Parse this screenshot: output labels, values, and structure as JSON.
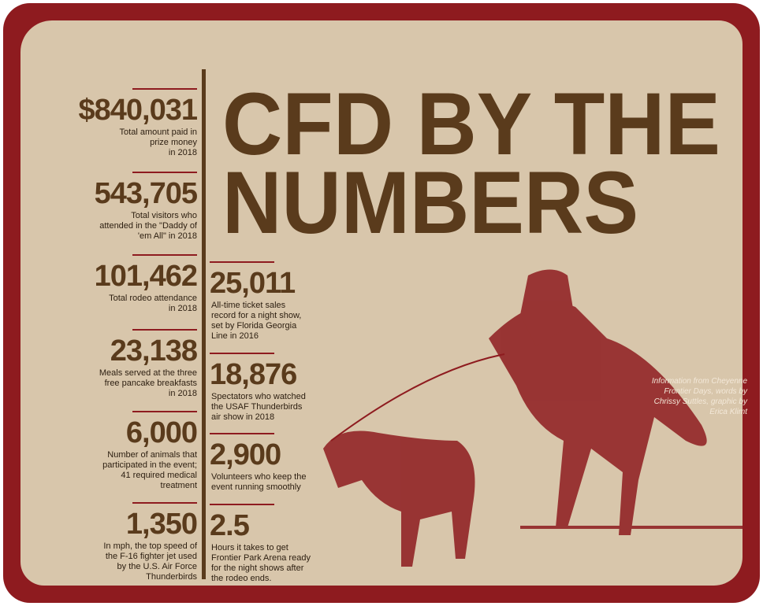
{
  "title": {
    "line1": "CFD BY THE",
    "line2": "NUMBERS"
  },
  "left_stats": [
    {
      "number": "$840,031",
      "caption": [
        "Total amount paid in",
        "prize money",
        "in 2018"
      ]
    },
    {
      "number": "543,705",
      "caption": [
        "Total visitors who",
        "attended in the \"Daddy of",
        "'em All\" in 2018"
      ]
    },
    {
      "number": "101,462",
      "caption": [
        "Total rodeo attendance",
        "in 2018"
      ]
    },
    {
      "number": "23,138",
      "caption": [
        "Meals served at the three",
        "free pancake breakfasts",
        "in 2018"
      ]
    },
    {
      "number": "6,000",
      "caption": [
        "Number of animals that",
        "participated in the event;",
        "41 required medical",
        "treatment"
      ]
    },
    {
      "number": "1,350",
      "caption": [
        "In mph, the top speed of",
        "the F-16 fighter jet used",
        "by the U.S. Air Force",
        "Thunderbirds"
      ]
    }
  ],
  "right_stats": [
    {
      "number": "25,011",
      "caption": [
        "All-time ticket sales",
        "record for a night show,",
        "set by Florida Georgia",
        "Line in 2016"
      ]
    },
    {
      "number": "18,876",
      "caption": [
        "Spectators who watched",
        "the USAF Thunderbirds",
        "air show in 2018"
      ]
    },
    {
      "number": "2,900",
      "caption": [
        "Volunteers who keep the",
        "event running smoothly"
      ]
    },
    {
      "number": "2.5",
      "caption": [
        "Hours it takes to get",
        "Frontier Park Arena ready",
        "for the night shows after",
        "the rodeo ends."
      ]
    }
  ],
  "credit": [
    "Information from Cheyenne",
    "Frontier Days, words by",
    "Chrissy Suttles, graphic by",
    "Erica Klimt"
  ]
}
